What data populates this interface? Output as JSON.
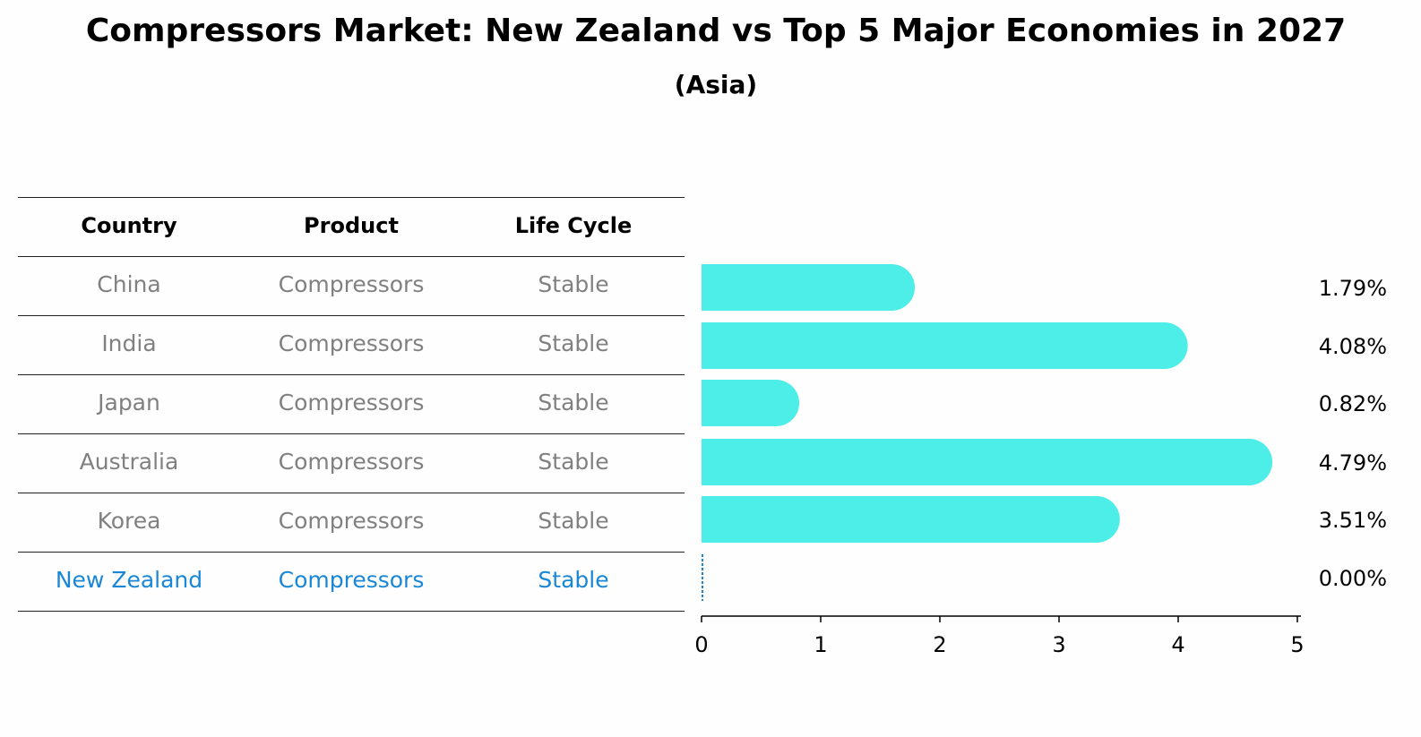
{
  "title": "Compressors Market: New Zealand vs Top 5 Major Economies in 2027",
  "subtitle": "(Asia)",
  "table": {
    "headers": [
      "Country",
      "Product",
      "Life Cycle"
    ],
    "rows": [
      {
        "country": "China",
        "product": "Compressors",
        "life_cycle": "Stable",
        "highlight": false
      },
      {
        "country": "India",
        "product": "Compressors",
        "life_cycle": "Stable",
        "highlight": false
      },
      {
        "country": "Japan",
        "product": "Compressors",
        "life_cycle": "Stable",
        "highlight": false
      },
      {
        "country": "Australia",
        "product": "Compressors",
        "life_cycle": "Stable",
        "highlight": false
      },
      {
        "country": "Korea",
        "product": "Compressors",
        "life_cycle": "Stable",
        "highlight": false
      },
      {
        "country": "New Zealand",
        "product": "Compressors",
        "life_cycle": "Stable",
        "highlight": true
      }
    ]
  },
  "colors": {
    "bar": "#4dede8",
    "highlight_text": "#1a87d6",
    "normal_text": "#808080"
  },
  "chart_data": {
    "type": "bar",
    "orientation": "horizontal",
    "categories": [
      "China",
      "India",
      "Japan",
      "Australia",
      "Korea",
      "New Zealand"
    ],
    "values": [
      1.79,
      4.08,
      0.82,
      4.79,
      3.51,
      0.0
    ],
    "value_labels": [
      "1.79%",
      "4.08%",
      "0.82%",
      "4.79%",
      "3.51%",
      "0.00%"
    ],
    "xlim": [
      0,
      5
    ],
    "xticks": [
      0,
      1,
      2,
      3,
      4,
      5
    ],
    "xtick_labels": [
      "0",
      "1",
      "2",
      "3",
      "4",
      "5"
    ],
    "xlabel": "",
    "ylabel": "",
    "grid": false
  }
}
